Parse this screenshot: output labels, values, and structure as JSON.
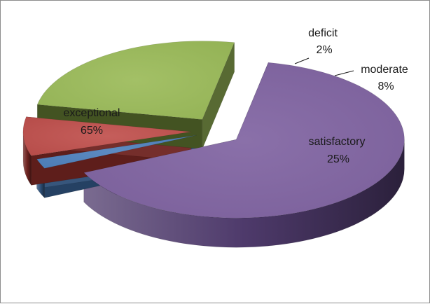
{
  "chart_data": {
    "type": "pie",
    "style": "3d-exploded",
    "slices": [
      {
        "name": "exceptional",
        "percent": 65,
        "label": "65%",
        "color": "#8064A2",
        "side_color": "#4E3A6B",
        "exploded": true
      },
      {
        "name": "deficit",
        "percent": 2,
        "label": "2%",
        "color": "#4F81BD",
        "side_color": "#2C4D75",
        "exploded": true
      },
      {
        "name": "moderate",
        "percent": 8,
        "label": "8%",
        "color": "#C0504D",
        "side_color": "#6E2320",
        "exploded": true
      },
      {
        "name": "satisfactory",
        "percent": 25,
        "label": "25%",
        "color": "#9BBB59",
        "side_color": "#4F6228",
        "exploded": true
      }
    ],
    "legend": "none",
    "data_labels": "category-and-percent"
  }
}
